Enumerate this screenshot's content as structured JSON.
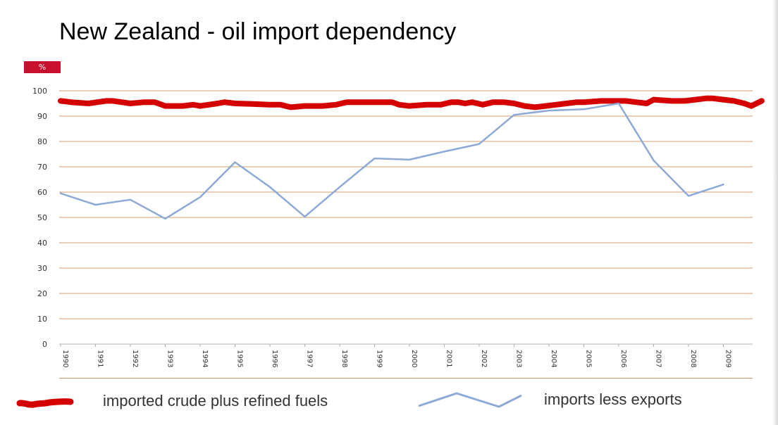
{
  "page": {
    "title": "New Zealand - oil import dependency",
    "unit_label": "%"
  },
  "legend": {
    "red_label": "imported crude plus refined fuels",
    "blue_label": "imports less exports"
  },
  "colors": {
    "red_series": "#d40000",
    "blue_series": "#8da9d6",
    "grid": "#d2a270",
    "badge": "#c8102e"
  },
  "chart_data": {
    "type": "line",
    "title": "New Zealand - oil import dependency",
    "xlabel": "",
    "ylabel": "%",
    "ylim": [
      0,
      100
    ],
    "yticks": [
      0,
      10,
      20,
      30,
      40,
      50,
      60,
      70,
      80,
      90,
      100
    ],
    "xticks": [
      "1990",
      "1991",
      "1992",
      "1993",
      "1994",
      "1995",
      "1996",
      "1997",
      "1998",
      "1999",
      "2000",
      "2001",
      "2002",
      "2003",
      "2004",
      "2005",
      "2006",
      "2007",
      "2008",
      "2009"
    ],
    "grid": true,
    "legend_position": "bottom",
    "series": [
      {
        "name": "imported crude plus refined fuels",
        "x": [
          1990,
          1990.3,
          1990.8,
          1991.3,
          1991.5,
          1992,
          1992.4,
          1992.7,
          1993,
          1993.5,
          1993.8,
          1994,
          1994.5,
          1994.7,
          1995,
          1995.5,
          1996,
          1996.3,
          1996.6,
          1997,
          1997.5,
          1997.9,
          1998.2,
          1998.7,
          1999,
          1999.5,
          1999.7,
          2000,
          2000.5,
          2000.9,
          2001.2,
          2001.4,
          2001.6,
          2001.8,
          2002.1,
          2002.4,
          2002.7,
          2003,
          2003.3,
          2003.6,
          2003.9,
          2004.2,
          2004.5,
          2004.8,
          2005,
          2005.5,
          2005.8,
          2006.2,
          2006.5,
          2006.8,
          2007,
          2007.5,
          2007.9,
          2008.2,
          2008.5,
          2008.7,
          2009,
          2009.3,
          2009.6,
          2009.8,
          2010.1
        ],
        "values": [
          96,
          95.5,
          95,
          96,
          96,
          95,
          95.5,
          95.5,
          94,
          94,
          94.5,
          94,
          95,
          95.5,
          95,
          94.8,
          94.5,
          94.5,
          93.5,
          94,
          94,
          94.5,
          95.5,
          95.5,
          95.5,
          95.5,
          94.5,
          94,
          94.5,
          94.5,
          95.5,
          95.5,
          95,
          95.5,
          94.5,
          95.5,
          95.5,
          95,
          94,
          93.5,
          94,
          94.5,
          95,
          95.5,
          95.5,
          96,
          96,
          96,
          95.5,
          95,
          96.5,
          96,
          96,
          96.5,
          97,
          97,
          96.5,
          96,
          95,
          94,
          96
        ]
      },
      {
        "name": "imports less exports",
        "x": [
          1990,
          1991,
          1992,
          1993,
          1994,
          1995,
          1996,
          1997,
          1998,
          1999,
          2000,
          2001,
          2002,
          2003,
          2004,
          2005,
          2006,
          2007,
          2008,
          2009
        ],
        "values": [
          59.5,
          55,
          57,
          49.5,
          58,
          71.8,
          62,
          50.3,
          62,
          73.3,
          72.8,
          76,
          79,
          90.5,
          92.2,
          92.7,
          95,
          72.5,
          58.5,
          63
        ]
      }
    ]
  }
}
